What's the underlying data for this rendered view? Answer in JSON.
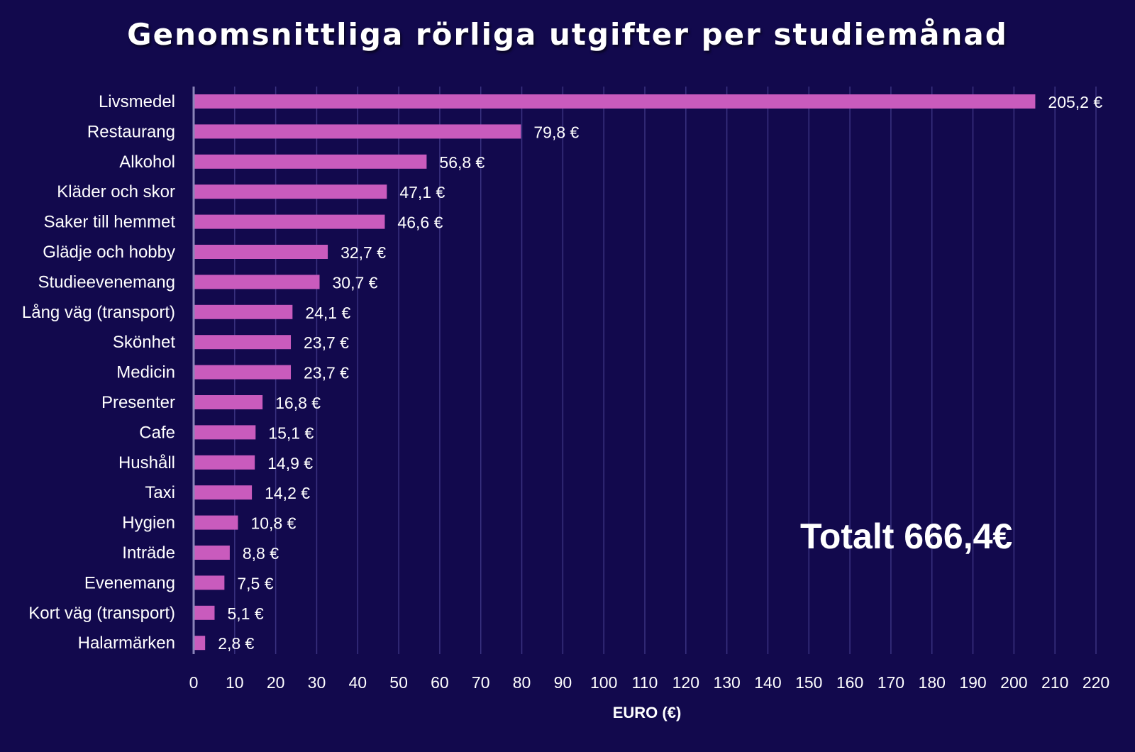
{
  "chart_data": {
    "type": "bar",
    "orientation": "horizontal",
    "title": "Genomsnittliga rörliga utgifter per studiemånad",
    "xlabel": "EURO (€)",
    "ylabel": "",
    "xlim": [
      0,
      220
    ],
    "xticks": [
      0,
      10,
      20,
      30,
      40,
      50,
      60,
      70,
      80,
      90,
      100,
      110,
      120,
      130,
      140,
      150,
      160,
      170,
      180,
      190,
      200,
      210,
      220
    ],
    "grid": true,
    "bar_color": "#c95bbd",
    "categories": [
      "Livsmedel",
      "Restaurang",
      "Alkohol",
      "Kläder och skor",
      "Saker till hemmet",
      "Glädje och hobby",
      "Studieevenemang",
      "Lång väg (transport)",
      "Skönhet",
      "Medicin",
      "Presenter",
      "Cafe",
      "Hushåll",
      "Taxi",
      "Hygien",
      "Inträde",
      "Evenemang",
      "Kort väg (transport)",
      "Halarmärken"
    ],
    "values": [
      205.2,
      79.8,
      56.8,
      47.1,
      46.6,
      32.7,
      30.7,
      24.1,
      23.7,
      23.7,
      16.8,
      15.1,
      14.9,
      14.2,
      10.8,
      8.8,
      7.5,
      5.1,
      2.8
    ],
    "value_labels": [
      "205,2 €",
      "79,8 €",
      "56,8 €",
      "47,1 €",
      "46,6 €",
      "32,7 €",
      "30,7 €",
      "24,1 €",
      "23,7 €",
      "23,7 €",
      "16,8 €",
      "15,1 €",
      "14,9 €",
      "14,2 €",
      "10,8 €",
      "8,8 €",
      "7,5 €",
      "5,1 €",
      "2,8 €"
    ],
    "annotation": "Totalt 666,4€"
  },
  "colors": {
    "background": "#12094d",
    "bar": "#c95bbd",
    "grid": "#3a3280",
    "axis": "#8a84b8",
    "text": "#ffffff"
  }
}
